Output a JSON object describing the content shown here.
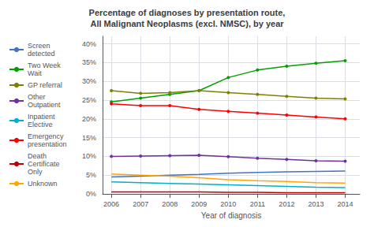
{
  "chart_data": {
    "type": "line",
    "title": "Percentage of diagnoses by presentation route,\nAll Malignant Neoplasms (excl. NMSC), by year",
    "xlabel": "Year of diagnosis",
    "x": [
      2006,
      2007,
      2008,
      2009,
      2010,
      2011,
      2012,
      2013,
      2014
    ],
    "series": [
      {
        "name": "Screen\ndetected",
        "color": "#4472C4",
        "marker": "none",
        "values": [
          4.5,
          4.7,
          5.0,
          5.2,
          5.5,
          5.7,
          5.9,
          6.0,
          6.1
        ]
      },
      {
        "name": "Two Week\nWait",
        "color": "#00A000",
        "marker": "circle",
        "values": [
          24.5,
          25.5,
          26.5,
          27.5,
          31.0,
          33.0,
          34.0,
          34.8,
          35.5
        ]
      },
      {
        "name": "GP referral",
        "color": "#808000",
        "marker": "circle",
        "values": [
          27.5,
          26.8,
          27.0,
          27.5,
          27.0,
          26.5,
          26.0,
          25.5,
          25.3
        ]
      },
      {
        "name": "Other\nOutpatient",
        "color": "#7030A0",
        "marker": "circle",
        "values": [
          10.0,
          10.1,
          10.2,
          10.3,
          9.9,
          9.5,
          9.2,
          8.8,
          8.7
        ]
      },
      {
        "name": "Inpatient\nElective",
        "color": "#00B0C8",
        "marker": "none",
        "values": [
          3.2,
          3.0,
          2.8,
          2.6,
          2.4,
          2.2,
          2.0,
          1.8,
          1.7
        ]
      },
      {
        "name": "Emergency\npresentation",
        "color": "#FF0000",
        "marker": "circle",
        "values": [
          24.0,
          23.5,
          23.5,
          22.5,
          22.0,
          21.5,
          21.0,
          20.5,
          20.0
        ]
      },
      {
        "name": "Death\nCertificate\nOnly",
        "color": "#C00000",
        "marker": "none",
        "values": [
          0.5,
          0.5,
          0.5,
          0.5,
          0.4,
          0.4,
          0.3,
          0.3,
          0.3
        ]
      },
      {
        "name": "Unknown",
        "color": "#FFA500",
        "marker": "none",
        "values": [
          5.3,
          5.0,
          4.7,
          4.3,
          3.8,
          3.5,
          3.3,
          3.0,
          2.9
        ]
      }
    ],
    "xlim": [
      2005.7,
      2014.5
    ],
    "xticks": [
      2006,
      2007,
      2008,
      2009,
      2010,
      2011,
      2012,
      2013,
      2014
    ],
    "ylim": [
      0,
      42
    ],
    "yticks": [
      {
        "value": 0,
        "label": "0%"
      },
      {
        "value": 5,
        "label": "5%"
      },
      {
        "value": 10,
        "label": "10%"
      },
      {
        "value": 15,
        "label": "15%"
      },
      {
        "value": 20,
        "label": "20%"
      },
      {
        "value": 25,
        "label": "25%"
      },
      {
        "value": 30,
        "label": "30%"
      },
      {
        "value": 35,
        "label": "35%"
      },
      {
        "value": 40,
        "label": "40%"
      }
    ],
    "grid": true,
    "legend": "left"
  }
}
